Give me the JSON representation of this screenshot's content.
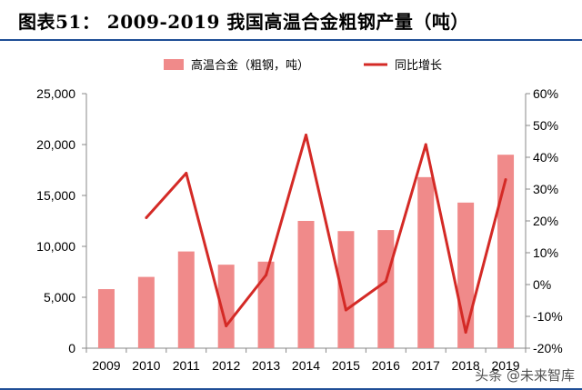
{
  "header": {
    "title": "图表51：   2009-2019 我国高温合金粗钢产量（吨）"
  },
  "watermark": "头条 @未来智库",
  "colors": {
    "bar": "#f08a8a",
    "line": "#d42a26",
    "rule": "#1f4e96"
  },
  "chart_data": {
    "type": "bar",
    "categories": [
      "2009",
      "2010",
      "2011",
      "2012",
      "2013",
      "2014",
      "2015",
      "2016",
      "2017",
      "2018",
      "2019"
    ],
    "series": [
      {
        "name": "高温合金（粗钢，吨）",
        "type": "bar",
        "axis": "left",
        "values": [
          5800,
          7000,
          9500,
          8200,
          8500,
          12500,
          11500,
          11600,
          16800,
          14300,
          19000
        ]
      },
      {
        "name": "同比增长",
        "type": "line",
        "axis": "right",
        "values": [
          null,
          21,
          35,
          -13,
          3,
          47,
          -8,
          1,
          44,
          -15,
          33
        ]
      }
    ],
    "y_left": {
      "min": 0,
      "max": 25000,
      "ticks": [
        "0",
        "5,000",
        "10,000",
        "15,000",
        "20,000",
        "25,000"
      ]
    },
    "y_right": {
      "min": -20,
      "max": 60,
      "ticks": [
        "-20%",
        "-10%",
        "0%",
        "10%",
        "20%",
        "30%",
        "40%",
        "50%",
        "60%"
      ]
    },
    "legend_position": "top",
    "grid": false
  }
}
